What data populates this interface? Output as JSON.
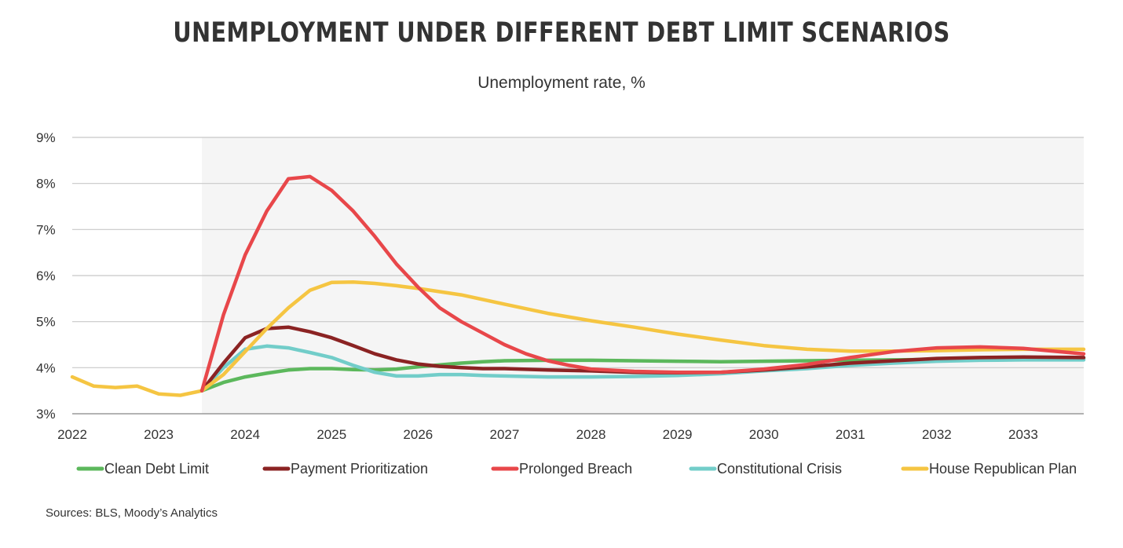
{
  "header": {
    "title": "UNEMPLOYMENT UNDER DIFFERENT DEBT LIMIT SCENARIOS",
    "subtitle": "Unemployment rate, %"
  },
  "footer": {
    "source": "Sources: BLS, Moody’s Analytics"
  },
  "chart_data": {
    "type": "line",
    "title": "UNEMPLOYMENT UNDER DIFFERENT DEBT LIMIT SCENARIOS",
    "subtitle": "Unemployment rate, %",
    "xlabel": "",
    "ylabel": "",
    "xlim": [
      2022,
      2033.7
    ],
    "ylim": [
      3,
      9
    ],
    "x_ticks": [
      2022,
      2023,
      2024,
      2025,
      2026,
      2027,
      2028,
      2029,
      2030,
      2031,
      2032,
      2033
    ],
    "x_tick_labels": [
      "2022",
      "2023",
      "2024",
      "2025",
      "2026",
      "2027",
      "2028",
      "2029",
      "2030",
      "2031",
      "2032",
      "2033"
    ],
    "y_ticks": [
      3,
      4,
      5,
      6,
      7,
      8,
      9
    ],
    "y_tick_labels": [
      "3%",
      "4%",
      "5%",
      "6%",
      "7%",
      "8%",
      "9%"
    ],
    "grid": "horizontal",
    "shaded_region": {
      "from": 2023.5,
      "to": 2033.7,
      "color": "#f5f5f5"
    },
    "legend_position": "bottom",
    "history": {
      "color": "#f5c542",
      "points": [
        [
          2022.0,
          3.8
        ],
        [
          2022.25,
          3.6
        ],
        [
          2022.5,
          3.57
        ],
        [
          2022.75,
          3.6
        ],
        [
          2023.0,
          3.43
        ],
        [
          2023.25,
          3.4
        ],
        [
          2023.5,
          3.5
        ]
      ]
    },
    "series": [
      {
        "name": "Clean Debt Limit",
        "color": "#5cb85c",
        "points": [
          [
            2023.5,
            3.5
          ],
          [
            2023.75,
            3.68
          ],
          [
            2024.0,
            3.8
          ],
          [
            2024.25,
            3.88
          ],
          [
            2024.5,
            3.95
          ],
          [
            2024.75,
            3.98
          ],
          [
            2025.0,
            3.98
          ],
          [
            2025.25,
            3.96
          ],
          [
            2025.5,
            3.95
          ],
          [
            2025.75,
            3.97
          ],
          [
            2026.0,
            4.02
          ],
          [
            2026.25,
            4.06
          ],
          [
            2026.5,
            4.1
          ],
          [
            2026.75,
            4.13
          ],
          [
            2027.0,
            4.15
          ],
          [
            2027.5,
            4.16
          ],
          [
            2028.0,
            4.16
          ],
          [
            2028.5,
            4.15
          ],
          [
            2029.0,
            4.14
          ],
          [
            2029.5,
            4.13
          ],
          [
            2030.0,
            4.14
          ],
          [
            2030.5,
            4.15
          ],
          [
            2031.0,
            4.16
          ],
          [
            2031.5,
            4.17
          ],
          [
            2032.0,
            4.18
          ],
          [
            2032.5,
            4.19
          ],
          [
            2033.0,
            4.2
          ],
          [
            2033.7,
            4.2
          ]
        ]
      },
      {
        "name": "Payment Prioritization",
        "color": "#8b2323",
        "points": [
          [
            2023.5,
            3.5
          ],
          [
            2023.75,
            4.1
          ],
          [
            2024.0,
            4.65
          ],
          [
            2024.25,
            4.85
          ],
          [
            2024.5,
            4.88
          ],
          [
            2024.75,
            4.78
          ],
          [
            2025.0,
            4.65
          ],
          [
            2025.25,
            4.48
          ],
          [
            2025.5,
            4.3
          ],
          [
            2025.75,
            4.17
          ],
          [
            2026.0,
            4.08
          ],
          [
            2026.25,
            4.03
          ],
          [
            2026.5,
            4.0
          ],
          [
            2026.75,
            3.98
          ],
          [
            2027.0,
            3.98
          ],
          [
            2027.5,
            3.95
          ],
          [
            2028.0,
            3.93
          ],
          [
            2028.5,
            3.9
          ],
          [
            2029.0,
            3.89
          ],
          [
            2029.5,
            3.9
          ],
          [
            2030.0,
            3.95
          ],
          [
            2030.5,
            4.02
          ],
          [
            2031.0,
            4.1
          ],
          [
            2031.5,
            4.15
          ],
          [
            2032.0,
            4.2
          ],
          [
            2032.5,
            4.22
          ],
          [
            2033.0,
            4.23
          ],
          [
            2033.7,
            4.22
          ]
        ]
      },
      {
        "name": "Prolonged Breach",
        "color": "#e8474a",
        "points": [
          [
            2023.5,
            3.5
          ],
          [
            2023.75,
            5.15
          ],
          [
            2024.0,
            6.45
          ],
          [
            2024.25,
            7.4
          ],
          [
            2024.5,
            8.1
          ],
          [
            2024.75,
            8.15
          ],
          [
            2025.0,
            7.85
          ],
          [
            2025.25,
            7.4
          ],
          [
            2025.5,
            6.85
          ],
          [
            2025.75,
            6.25
          ],
          [
            2026.0,
            5.75
          ],
          [
            2026.25,
            5.3
          ],
          [
            2026.5,
            5.0
          ],
          [
            2026.75,
            4.75
          ],
          [
            2027.0,
            4.5
          ],
          [
            2027.25,
            4.3
          ],
          [
            2027.5,
            4.15
          ],
          [
            2027.75,
            4.05
          ],
          [
            2028.0,
            3.97
          ],
          [
            2028.5,
            3.92
          ],
          [
            2029.0,
            3.9
          ],
          [
            2029.5,
            3.9
          ],
          [
            2030.0,
            3.97
          ],
          [
            2030.5,
            4.07
          ],
          [
            2031.0,
            4.22
          ],
          [
            2031.5,
            4.35
          ],
          [
            2032.0,
            4.43
          ],
          [
            2032.5,
            4.45
          ],
          [
            2033.0,
            4.42
          ],
          [
            2033.7,
            4.3
          ]
        ]
      },
      {
        "name": "Constitutional Crisis",
        "color": "#72cdc9",
        "points": [
          [
            2023.5,
            3.5
          ],
          [
            2023.75,
            4.0
          ],
          [
            2024.0,
            4.4
          ],
          [
            2024.25,
            4.47
          ],
          [
            2024.5,
            4.43
          ],
          [
            2024.75,
            4.33
          ],
          [
            2025.0,
            4.22
          ],
          [
            2025.25,
            4.05
          ],
          [
            2025.5,
            3.9
          ],
          [
            2025.75,
            3.82
          ],
          [
            2026.0,
            3.82
          ],
          [
            2026.25,
            3.85
          ],
          [
            2026.5,
            3.85
          ],
          [
            2026.75,
            3.83
          ],
          [
            2027.0,
            3.82
          ],
          [
            2027.5,
            3.8
          ],
          [
            2028.0,
            3.8
          ],
          [
            2028.5,
            3.81
          ],
          [
            2029.0,
            3.83
          ],
          [
            2029.5,
            3.87
          ],
          [
            2030.0,
            3.93
          ],
          [
            2030.5,
            3.98
          ],
          [
            2031.0,
            4.05
          ],
          [
            2031.5,
            4.1
          ],
          [
            2032.0,
            4.14
          ],
          [
            2032.5,
            4.16
          ],
          [
            2033.0,
            4.17
          ],
          [
            2033.7,
            4.17
          ]
        ]
      },
      {
        "name": "House Republican Plan",
        "color": "#f5c542",
        "points": [
          [
            2023.5,
            3.5
          ],
          [
            2023.75,
            3.85
          ],
          [
            2024.0,
            4.35
          ],
          [
            2024.25,
            4.85
          ],
          [
            2024.5,
            5.3
          ],
          [
            2024.75,
            5.68
          ],
          [
            2025.0,
            5.85
          ],
          [
            2025.25,
            5.86
          ],
          [
            2025.5,
            5.83
          ],
          [
            2025.75,
            5.78
          ],
          [
            2026.0,
            5.72
          ],
          [
            2026.5,
            5.58
          ],
          [
            2027.0,
            5.38
          ],
          [
            2027.5,
            5.18
          ],
          [
            2028.0,
            5.02
          ],
          [
            2028.5,
            4.88
          ],
          [
            2029.0,
            4.73
          ],
          [
            2029.5,
            4.6
          ],
          [
            2030.0,
            4.48
          ],
          [
            2030.5,
            4.4
          ],
          [
            2031.0,
            4.36
          ],
          [
            2031.5,
            4.36
          ],
          [
            2032.0,
            4.37
          ],
          [
            2032.5,
            4.39
          ],
          [
            2033.0,
            4.4
          ],
          [
            2033.7,
            4.4
          ]
        ]
      }
    ]
  }
}
